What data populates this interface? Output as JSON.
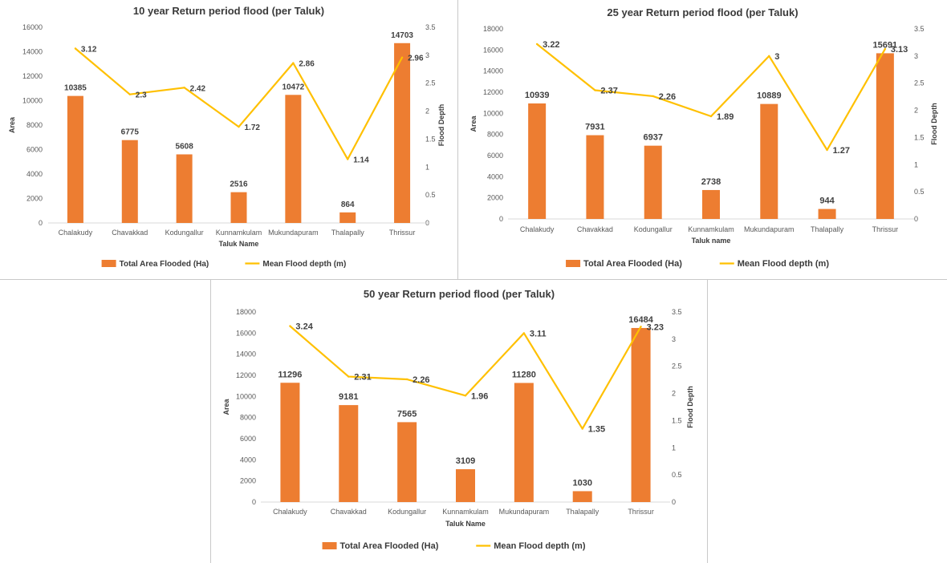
{
  "chart_data": [
    {
      "type": "bar+line",
      "title": "10 year Return period flood (per Taluk)",
      "xlabel": "Taluk Name",
      "ylabel": "Area",
      "y2label": "Flood Depth",
      "categories": [
        "Chalakudy",
        "Chavakkad",
        "Kodungallur",
        "Kunnamkulam",
        "Mukundapuram",
        "Thalapally",
        "Thrissur"
      ],
      "ylim": [
        0,
        16000
      ],
      "yticks": [
        0,
        2000,
        4000,
        6000,
        8000,
        10000,
        12000,
        14000,
        16000
      ],
      "y2lim": [
        0,
        3.5
      ],
      "y2ticks": [
        0,
        0.5,
        1,
        1.5,
        2,
        2.5,
        3,
        3.5
      ],
      "series": [
        {
          "name": "Total Area Flooded (Ha)",
          "type": "bar",
          "axis": "left",
          "color": "#ED7D31",
          "values": [
            10385,
            6775,
            5608,
            2516,
            10472,
            864,
            14703
          ]
        },
        {
          "name": "Mean Flood depth (m)",
          "type": "line",
          "axis": "right",
          "color": "#FFC000",
          "values": [
            3.12,
            2.3,
            2.42,
            1.72,
            2.86,
            1.14,
            2.96
          ]
        }
      ],
      "legend": "bottom",
      "grid": false
    },
    {
      "type": "bar+line",
      "title": "25 year Return period flood (per Taluk)",
      "xlabel": "Taluk name",
      "ylabel": "Area",
      "y2label": "Flood Depth",
      "categories": [
        "Chalakudy",
        "Chavakkad",
        "Kodungallur",
        "Kunnamkulam",
        "Mukundapuram",
        "Thalapally",
        "Thrissur"
      ],
      "ylim": [
        0,
        18000
      ],
      "yticks": [
        0,
        2000,
        4000,
        6000,
        8000,
        10000,
        12000,
        14000,
        16000,
        18000
      ],
      "y2lim": [
        0,
        3.5
      ],
      "y2ticks": [
        0,
        0.5,
        1,
        1.5,
        2,
        2.5,
        3,
        3.5
      ],
      "series": [
        {
          "name": "Total Area Flooded (Ha)",
          "type": "bar",
          "axis": "left",
          "color": "#ED7D31",
          "values": [
            10939,
            7931,
            6937,
            2738,
            10889,
            944,
            15691
          ]
        },
        {
          "name": "Mean Flood depth (m)",
          "type": "line",
          "axis": "right",
          "color": "#FFC000",
          "values": [
            3.22,
            2.37,
            2.26,
            1.89,
            3,
            1.27,
            3.13
          ]
        }
      ],
      "legend": "bottom",
      "grid": false
    },
    {
      "type": "bar+line",
      "title": "50 year Return period flood (per Taluk)",
      "xlabel": "Taluk Name",
      "ylabel": "Area",
      "y2label": "Flood Depth",
      "categories": [
        "Chalakudy",
        "Chavakkad",
        "Kodungallur",
        "Kunnamkulam",
        "Mukundapuram",
        "Thalapally",
        "Thrissur"
      ],
      "ylim": [
        0,
        18000
      ],
      "yticks": [
        0,
        2000,
        4000,
        6000,
        8000,
        10000,
        12000,
        14000,
        16000,
        18000
      ],
      "y2lim": [
        0,
        3.5
      ],
      "y2ticks": [
        0,
        0.5,
        1,
        1.5,
        2,
        2.5,
        3,
        3.5
      ],
      "series": [
        {
          "name": "Total Area Flooded (Ha)",
          "type": "bar",
          "axis": "left",
          "color": "#ED7D31",
          "values": [
            11296,
            9181,
            7565,
            3109,
            11280,
            1030,
            16484
          ]
        },
        {
          "name": "Mean Flood depth (m)",
          "type": "line",
          "axis": "right",
          "color": "#FFC000",
          "values": [
            3.24,
            2.31,
            2.26,
            1.96,
            3.11,
            1.35,
            3.23
          ]
        }
      ],
      "legend": "bottom",
      "grid": false
    }
  ]
}
